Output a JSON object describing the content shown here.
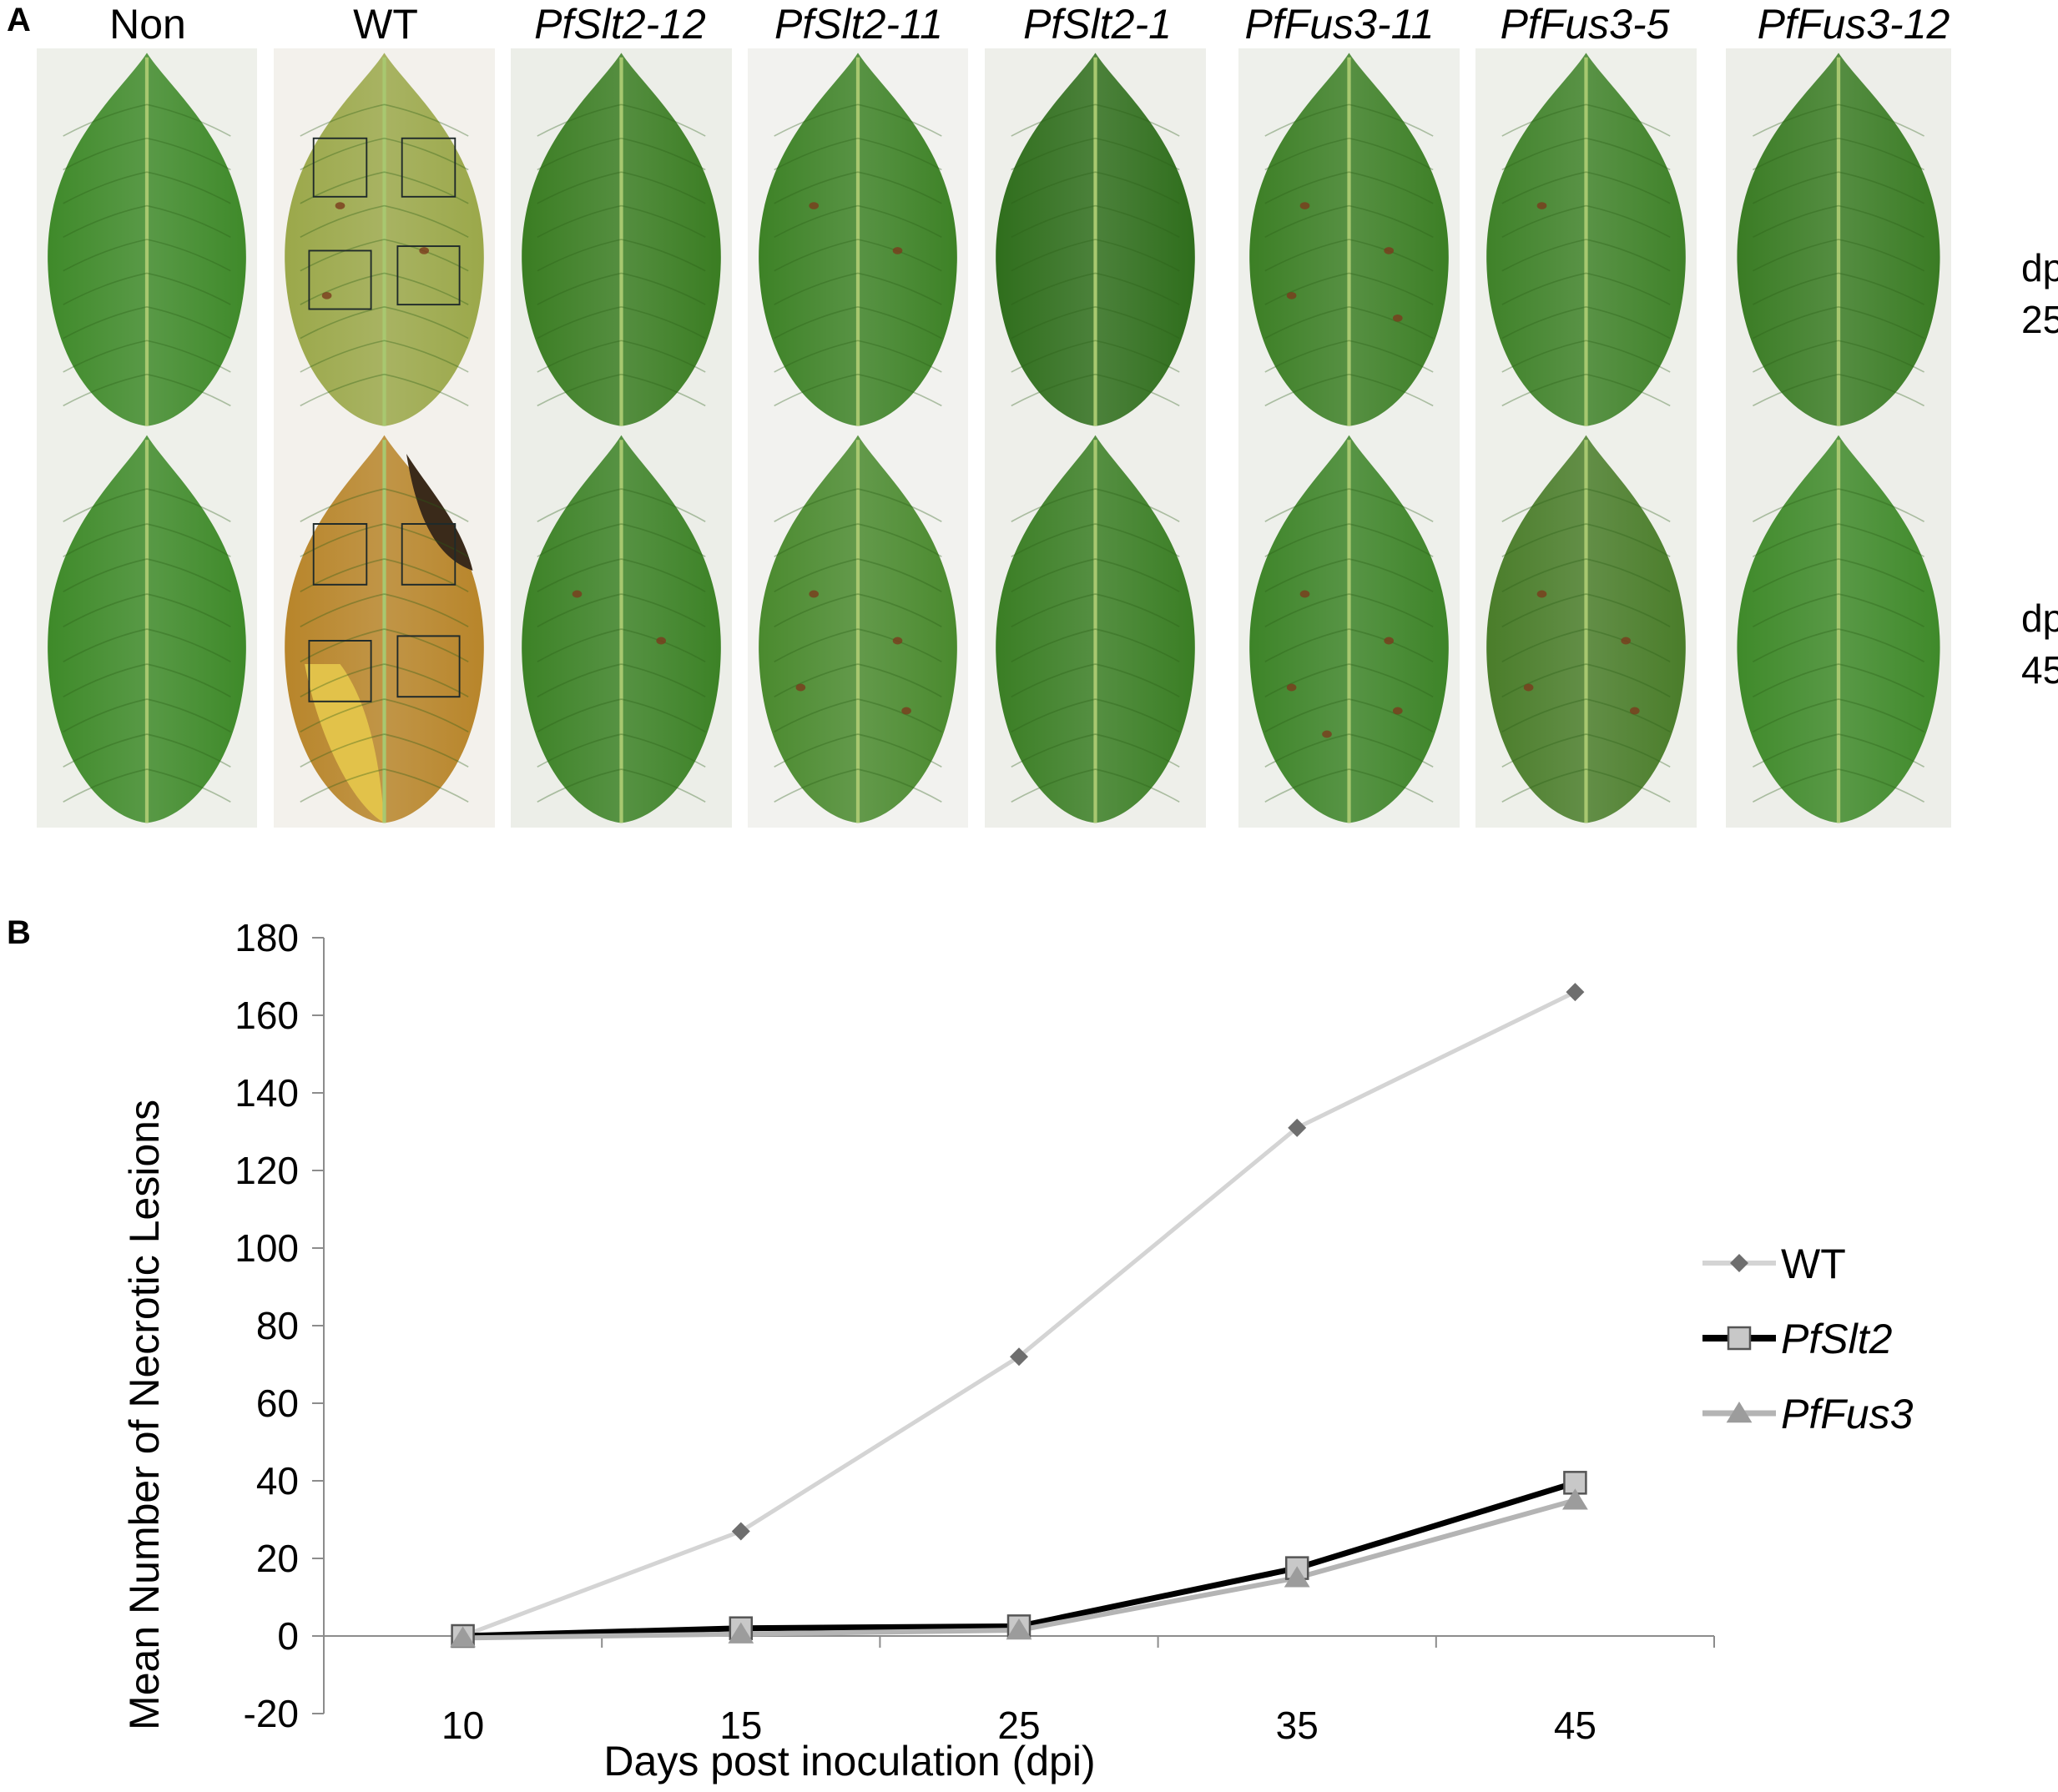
{
  "panel_a": {
    "label": "A",
    "columns": [
      {
        "label": "Non",
        "italic": false
      },
      {
        "label": "WT",
        "italic": false
      },
      {
        "label": "PfSlt2-12",
        "italic": true
      },
      {
        "label": "PfSlt2-11",
        "italic": true
      },
      {
        "label": "PfSlt2-1",
        "italic": true
      },
      {
        "label": "PfFus3-11",
        "italic": true
      },
      {
        "label": "PfFus3-5",
        "italic": true
      },
      {
        "label": "PfFus3-12",
        "italic": true
      }
    ],
    "rows": [
      {
        "line1": "dpi",
        "line2": "25"
      },
      {
        "line1": "dpi",
        "line2": "45"
      }
    ]
  },
  "panel_b": {
    "label": "B"
  },
  "chart_data": {
    "type": "line",
    "categories": [
      "10",
      "15",
      "25",
      "35",
      "45"
    ],
    "xlabel": "Days post inoculation (dpi)",
    "ylabel": "Mean Number of Necrotic Lesions",
    "ylim": [
      -20,
      180
    ],
    "yticks": [
      "-20",
      "0",
      "20",
      "40",
      "60",
      "80",
      "100",
      "120",
      "140",
      "160",
      "180"
    ],
    "grid": false,
    "legend_position": "right",
    "series": [
      {
        "name": "WT",
        "italic": false,
        "marker": "diamond",
        "line_color": "#d4d4d4",
        "marker_color": "#6e6e6e",
        "values": [
          0,
          27,
          72,
          131,
          166
        ]
      },
      {
        "name": "PfSlt2",
        "italic": true,
        "marker": "square",
        "line_color": "#000000",
        "marker_color": "#c8c8c8",
        "values": [
          0,
          2,
          2.5,
          17.5,
          39.5
        ]
      },
      {
        "name": "PfFus3",
        "italic": true,
        "marker": "triangle",
        "line_color": "#b4b4b4",
        "marker_color": "#9c9c9c",
        "values": [
          -0.5,
          0.5,
          1.5,
          15,
          35
        ]
      }
    ]
  }
}
